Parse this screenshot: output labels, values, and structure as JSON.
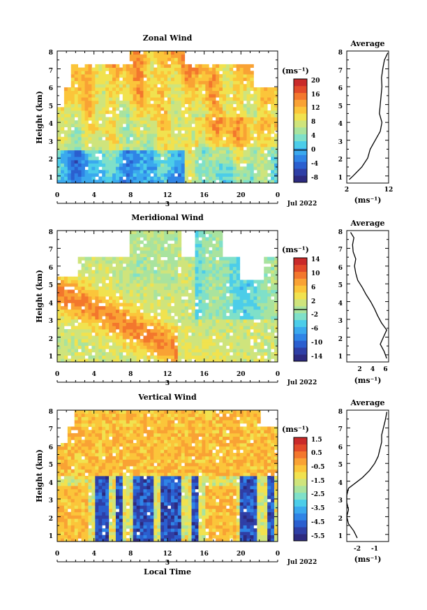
{
  "chart_data": [
    {
      "type": "heatmap",
      "title": "Zonal Wind",
      "ylabel": "Height (km)",
      "xlim": [
        0,
        24
      ],
      "ylim": [
        0.6,
        8
      ],
      "x_ticks": [
        "0",
        "4",
        "8",
        "12",
        "16",
        "20",
        "0"
      ],
      "y_ticks": [
        "1",
        "2",
        "3",
        "4",
        "5",
        "6",
        "7",
        "8"
      ],
      "colorbar_unit": "(ms⁻¹)",
      "colorbar_range": [
        -10,
        22
      ],
      "colorbar_ticks": [
        "-8",
        "-4",
        "0",
        "4",
        "8",
        "12",
        "16",
        "20"
      ],
      "date_label": "3",
      "month_label": "Jul 2022",
      "profile": {
        "title": "Average",
        "xlim": [
          2,
          12
        ],
        "x_ticks": [
          "2",
          "12"
        ],
        "xlabel": "(ms⁻¹)",
        "heights": [
          0.8,
          1.0,
          1.5,
          2.0,
          2.5,
          3.0,
          3.5,
          4.0,
          4.5,
          5.0,
          5.5,
          6.0,
          6.5,
          7.0,
          7.5,
          7.9
        ],
        "values": [
          2.6,
          3.5,
          5.6,
          7.0,
          7.6,
          8.8,
          10.0,
          10.4,
          9.8,
          10.0,
          10.2,
          10.4,
          10.3,
          10.6,
          11.0,
          11.8
        ]
      }
    },
    {
      "type": "heatmap",
      "title": "Meridional Wind",
      "ylabel": "Height (km)",
      "xlim": [
        0,
        24
      ],
      "ylim": [
        0.6,
        8
      ],
      "x_ticks": [
        "0",
        "4",
        "8",
        "12",
        "16",
        "20",
        "0"
      ],
      "y_ticks": [
        "1",
        "2",
        "3",
        "4",
        "5",
        "6",
        "7",
        "8"
      ],
      "colorbar_unit": "(ms⁻¹)",
      "colorbar_range": [
        -16,
        16
      ],
      "colorbar_ticks": [
        "-14",
        "-10",
        "-6",
        "-2",
        "2",
        "6",
        "10",
        "14"
      ],
      "date_label": "3",
      "month_label": "Jul 2022",
      "profile": {
        "title": "Average",
        "xlim": [
          0,
          6.5
        ],
        "x_ticks": [
          "2",
          "4",
          "6"
        ],
        "xlabel": "(ms⁻¹)",
        "heights": [
          0.8,
          1.2,
          1.6,
          2.0,
          2.4,
          2.8,
          3.2,
          3.6,
          4.0,
          4.4,
          4.8,
          5.2,
          5.6,
          6.0,
          6.4,
          6.8,
          7.2,
          7.6,
          7.9
        ],
        "values": [
          6.2,
          5.8,
          5.2,
          5.7,
          6.2,
          5.4,
          4.8,
          4.3,
          3.7,
          3.0,
          2.4,
          1.7,
          1.4,
          1.2,
          1.4,
          1.0,
          0.9,
          1.1,
          0.6
        ]
      }
    },
    {
      "type": "heatmap",
      "title": "Vertical Wind",
      "ylabel": "Height (km)",
      "xlabel": "Local Time",
      "xlim": [
        0,
        24
      ],
      "ylim": [
        0.6,
        8
      ],
      "x_ticks": [
        "0",
        "4",
        "8",
        "12",
        "16",
        "20",
        "0"
      ],
      "y_ticks": [
        "1",
        "2",
        "3",
        "4",
        "5",
        "6",
        "7",
        "8"
      ],
      "colorbar_unit": "(ms⁻¹)",
      "colorbar_range": [
        -6,
        2
      ],
      "colorbar_ticks": [
        "-5.5",
        "-4.5",
        "-3.5",
        "-2.5",
        "-1.5",
        "-0.5",
        "0.5",
        "1.5"
      ],
      "date_label": "3",
      "month_label": "Jul 2022",
      "profile": {
        "title": "Average",
        "xlim": [
          -2.6,
          -0.2
        ],
        "x_ticks": [
          "-2",
          "-1"
        ],
        "xlabel": "(ms⁻¹)",
        "heights": [
          0.8,
          1.2,
          1.6,
          2.0,
          2.4,
          2.8,
          3.2,
          3.6,
          3.9,
          4.2,
          4.6,
          5.0,
          5.4,
          5.8,
          6.2,
          6.6,
          7.0,
          7.4,
          7.9
        ],
        "values": [
          -2.0,
          -2.2,
          -2.5,
          -2.6,
          -2.5,
          -2.6,
          -2.6,
          -2.5,
          -2.1,
          -1.7,
          -1.3,
          -1.0,
          -0.8,
          -0.7,
          -0.6,
          -0.6,
          -0.5,
          -0.4,
          -0.3
        ]
      }
    }
  ]
}
